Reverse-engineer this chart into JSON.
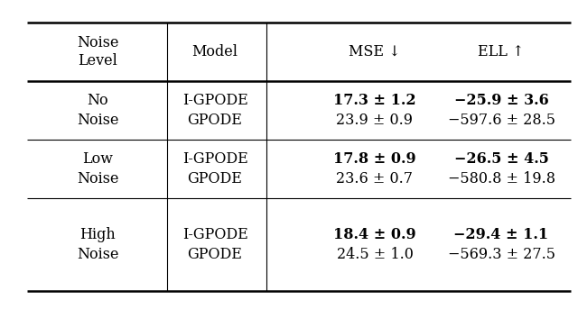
{
  "rows_data": [
    {
      "noise_l1": "No",
      "noise_l2": "Noise",
      "model1": "I-GPODE",
      "model2": "GPODE",
      "mse1": "17.3 ± 1.2",
      "mse2": "23.9 ± 0.9",
      "ell1": "−25.9 ± 3.6",
      "ell2": "−597.6 ± 28.5",
      "mse1_bold": true,
      "ell1_bold": true
    },
    {
      "noise_l1": "Low",
      "noise_l2": "Noise",
      "model1": "I-GPODE",
      "model2": "GPODE",
      "mse1": "17.8 ± 0.9",
      "mse2": "23.6 ± 0.7",
      "ell1": "−26.5 ± 4.5",
      "ell2": "−580.8 ± 19.8",
      "mse1_bold": true,
      "ell1_bold": true
    },
    {
      "noise_l1": "High",
      "noise_l2": "Noise",
      "model1": "I-GPODE",
      "model2": "GPODE",
      "mse1": "18.4 ± 0.9",
      "mse2": "24.5 ± 1.0",
      "ell1": "−29.4 ± 1.1",
      "ell2": "−569.3 ± 27.5",
      "mse1_bold": true,
      "ell1_bold": true
    }
  ],
  "bg_color": "#ffffff",
  "lw_thick": 1.8,
  "lw_thin": 0.8,
  "fontsize": 11.5,
  "fontsize_header": 11.5
}
